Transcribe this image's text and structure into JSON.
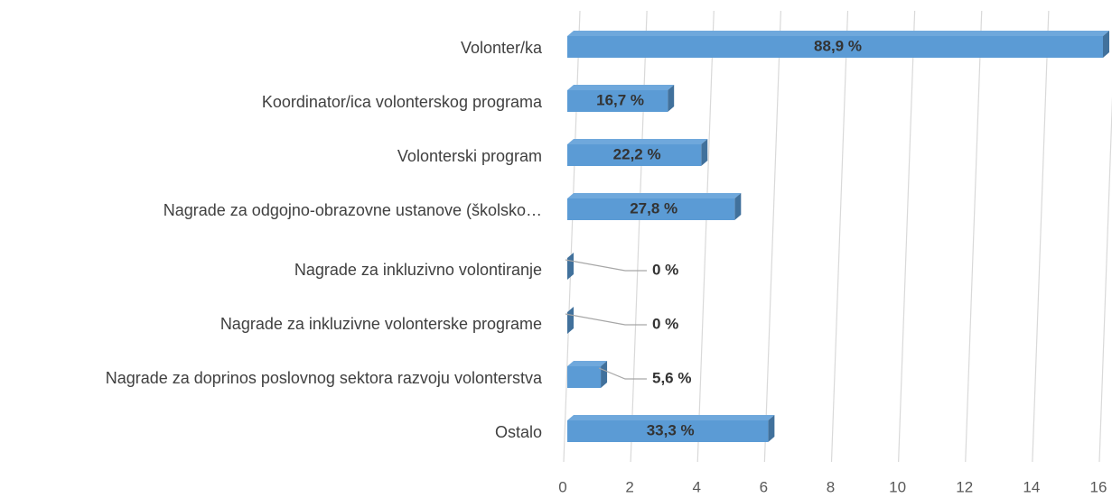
{
  "chart_data": {
    "type": "bar",
    "orientation": "horizontal",
    "categories": [
      "Volonter/ka",
      "Koordinator/ica volonterskog programa",
      "Volonterski program",
      "Nagrade za odgojno-obrazovne ustanove (školsko…",
      "Nagrade za inkluzivno volontiranje",
      "Nagrade za inkluzivne volonterske programe",
      "Nagrade za doprinos poslovnog sektora razvoju volonterstva",
      "Ostalo"
    ],
    "values": [
      16,
      3,
      4,
      5,
      0,
      0,
      1,
      6
    ],
    "value_labels": [
      "88,9 %",
      "16,7 %",
      "22,2 %",
      "27,8 %",
      "0 %",
      "0 %",
      "5,6 %",
      "33,3 %"
    ],
    "color": "#5b9bd5",
    "xlim": [
      0,
      16
    ],
    "xticks": [
      0,
      2,
      4,
      6,
      8,
      10,
      12,
      14,
      16
    ],
    "grid": true
  }
}
